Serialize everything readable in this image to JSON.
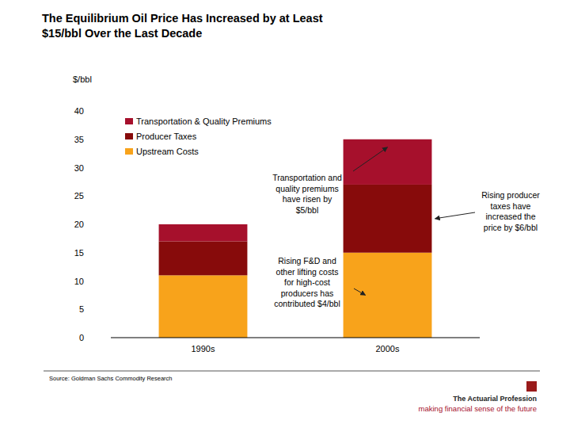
{
  "chart_data": {
    "type": "bar",
    "stacked": true,
    "title": "The Equilibrium Oil Price Has Increased by at Least $15/bbl Over the Last Decade",
    "y_label": "$/bbl",
    "categories": [
      "1990s",
      "2000s"
    ],
    "series": [
      {
        "name": "Upstream Costs",
        "color": "#f8a31b",
        "values": [
          11,
          15
        ]
      },
      {
        "name": "Producer Taxes",
        "color": "#870b0b",
        "values": [
          6,
          12
        ]
      },
      {
        "name": "Transportation & Quality Premiums",
        "color": "#a6102c",
        "values": [
          3,
          8
        ]
      }
    ],
    "ylim": [
      0,
      40
    ],
    "yticks": [
      0,
      5,
      10,
      15,
      20,
      25,
      30,
      35,
      40
    ],
    "grid": false,
    "legend": "upper left",
    "annotations": [
      "Transportation and quality premiums have risen by $5/bbl",
      "Rising producer taxes have increased the price by $6/bbl",
      "Rising F&D and other lifting costs for high-cost producers has contributed $4/bbl"
    ],
    "source": "Source: Goldman Sachs Commodity Research",
    "footer": [
      "The Actuarial Profession",
      "making financial sense of the future"
    ]
  }
}
